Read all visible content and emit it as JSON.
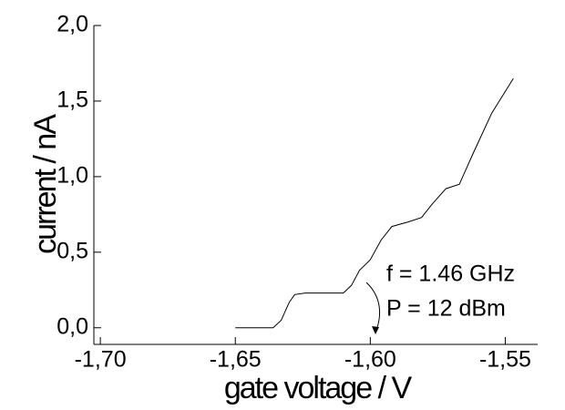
{
  "chart_data": {
    "type": "line",
    "xlabel": "gate voltage /  V",
    "ylabel": "current  /  nA",
    "annotations": [
      "f =  1.46 GHz",
      "P =  12 dBm"
    ],
    "x": [
      -1.65,
      -1.636,
      -1.633,
      -1.63,
      -1.628,
      -1.624,
      -1.61,
      -1.607,
      -1.604,
      -1.6,
      -1.596,
      -1.592,
      -1.586,
      -1.581,
      -1.577,
      -1.572,
      -1.567,
      -1.562,
      -1.555,
      -1.547
    ],
    "series": [
      {
        "color": "#000000",
        "values": [
          0.0,
          0.0,
          0.05,
          0.17,
          0.22,
          0.23,
          0.23,
          0.28,
          0.38,
          0.45,
          0.58,
          0.67,
          0.7,
          0.73,
          0.82,
          0.92,
          0.95,
          1.15,
          1.42,
          1.65
        ]
      }
    ],
    "xlim": [
      -1.7024,
      -1.538
    ],
    "ylim": [
      -0.11,
      2.0
    ],
    "xticks": [
      {
        "value": -1.7,
        "label": "-1,70"
      },
      {
        "value": -1.65,
        "label": "-1,65"
      },
      {
        "value": -1.6,
        "label": "-1,60"
      },
      {
        "value": -1.55,
        "label": "-1,55"
      }
    ],
    "yticks": [
      {
        "value": 0.0,
        "label": "0,0"
      },
      {
        "value": 0.5,
        "label": "0,5"
      },
      {
        "value": 1.0,
        "label": "1,0"
      },
      {
        "value": 1.5,
        "label": "1,5"
      },
      {
        "value": 2.0,
        "label": "2,0"
      }
    ]
  }
}
